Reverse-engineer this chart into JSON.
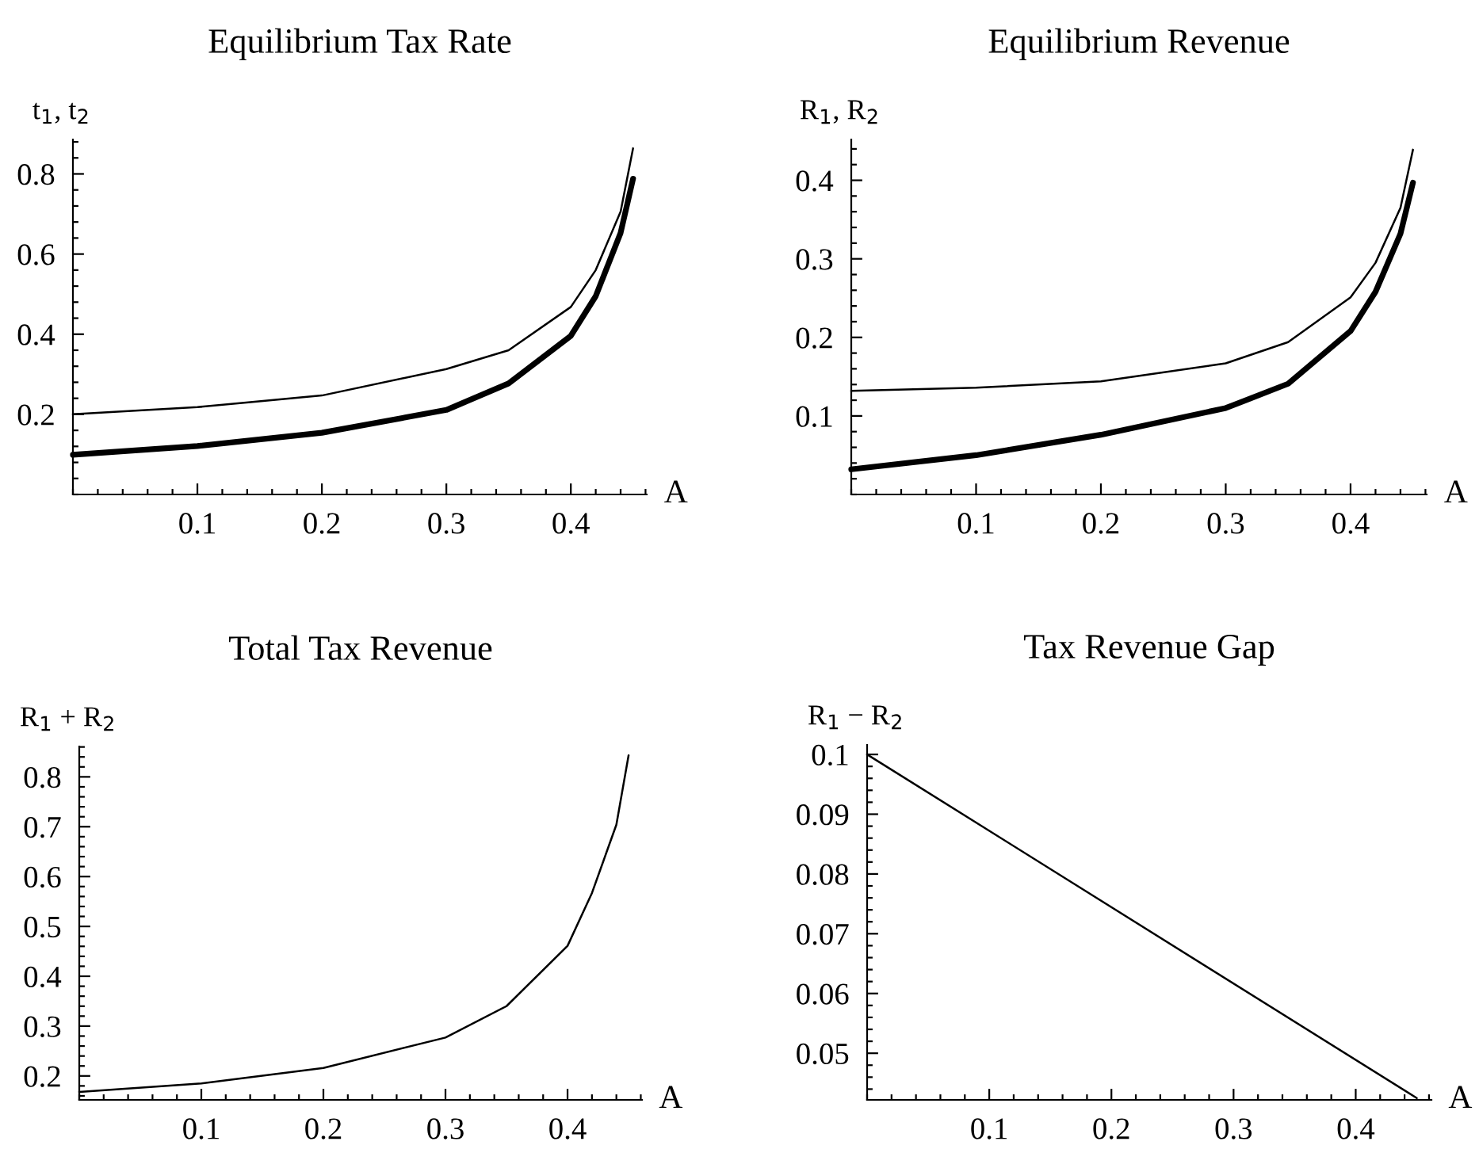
{
  "chart_data": [
    {
      "type": "line",
      "title": "Equilibrium Tax Rate",
      "ylabel": "t$_{1}$, t$_{2}$",
      "xlabel": "A",
      "x": [
        0,
        0.1,
        0.2,
        0.3,
        0.35,
        0.4,
        0.42,
        0.44,
        0.45
      ],
      "series": [
        {
          "color": "#000000",
          "values": [
            0.2,
            0.218,
            0.247,
            0.313,
            0.36,
            0.468,
            0.56,
            0.706,
            0.864
          ]
        },
        {
          "color": "#000000",
          "values": [
            0.099,
            0.121,
            0.154,
            0.211,
            0.277,
            0.396,
            0.495,
            0.653,
            0.788
          ]
        }
      ],
      "xlim": [
        0,
        0.461
      ],
      "ylim": [
        0,
        0.886
      ],
      "xticks": [
        0.1,
        0.2,
        0.3,
        0.4
      ],
      "yticks": [
        0.2,
        0.4,
        0.6,
        0.8
      ]
    },
    {
      "type": "line",
      "title": "Equilibrium Revenue",
      "ylabel": "R$_{1}$, R$_{2}$",
      "xlabel": "A",
      "x": [
        0,
        0.1,
        0.2,
        0.3,
        0.35,
        0.4,
        0.42,
        0.44,
        0.45
      ],
      "series": [
        {
          "color": "#000000",
          "values": [
            0.132,
            0.136,
            0.144,
            0.167,
            0.194,
            0.251,
            0.295,
            0.365,
            0.439
          ]
        },
        {
          "color": "#000000",
          "values": [
            0.032,
            0.05,
            0.076,
            0.11,
            0.141,
            0.208,
            0.258,
            0.332,
            0.397
          ]
        }
      ],
      "xlim": [
        0,
        0.461
      ],
      "ylim": [
        0,
        0.452
      ],
      "xticks": [
        0.1,
        0.2,
        0.3,
        0.4
      ],
      "yticks": [
        0.1,
        0.2,
        0.3,
        0.4
      ]
    },
    {
      "type": "line",
      "title": "Total Tax Revenue",
      "ylabel": "R$_{1}$ + R$_{2}$",
      "xlabel": "A",
      "x": [
        0,
        0.1,
        0.2,
        0.3,
        0.35,
        0.4,
        0.42,
        0.44,
        0.45
      ],
      "series": [
        {
          "color": "#000000",
          "values": [
            0.168,
            0.185,
            0.216,
            0.277,
            0.34,
            0.461,
            0.567,
            0.704,
            0.843
          ]
        }
      ],
      "xlim": [
        0,
        0.461
      ],
      "ylim": [
        0.152,
        0.861
      ],
      "xticks": [
        0.1,
        0.2,
        0.3,
        0.4
      ],
      "yticks": [
        0.2,
        0.3,
        0.4,
        0.5,
        0.6,
        0.7,
        0.8
      ]
    },
    {
      "type": "line",
      "title": "Tax Revenue Gap",
      "ylabel": "R$_{1}$ − R$_{2}$",
      "xlabel": "A",
      "x": [
        0,
        0.45
      ],
      "series": [
        {
          "color": "#000000",
          "values": [
            0.1,
            0.0425
          ]
        }
      ],
      "xlim": [
        0,
        0.462
      ],
      "ylim": [
        0.0422,
        0.1016
      ],
      "xticks": [
        0.1,
        0.2,
        0.3,
        0.4
      ],
      "yticks": [
        0.05,
        0.06,
        0.07,
        0.08,
        0.09,
        0.1
      ]
    }
  ]
}
